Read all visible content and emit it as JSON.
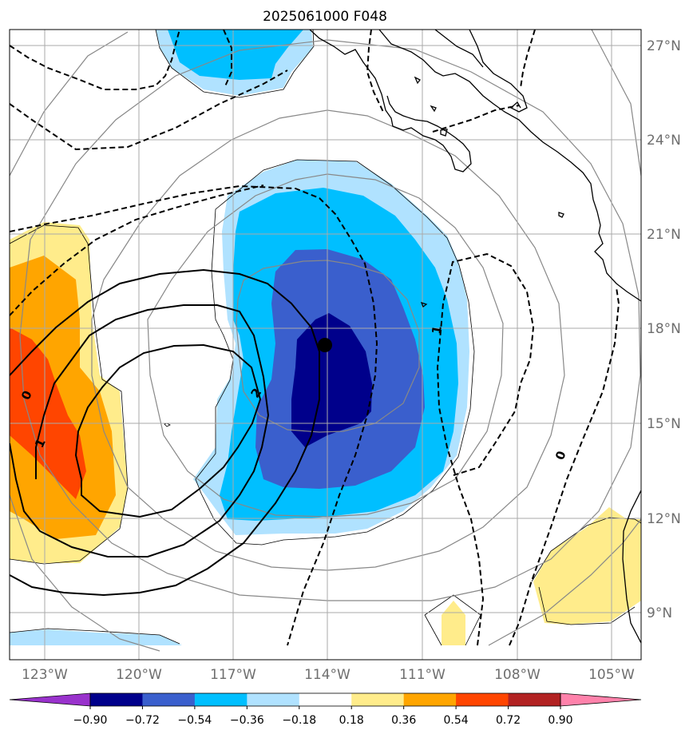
{
  "title": "2025061000 F048",
  "lat_labels": [
    "27°N",
    "24°N",
    "21°N",
    "18°N",
    "15°N",
    "12°N",
    "9°N"
  ],
  "lon_labels": [
    "123°W",
    "120°W",
    "117°W",
    "114°W",
    "111°W",
    "108°W",
    "105°W"
  ],
  "contour_labels": {
    "zero_left": "0",
    "one_left": "1",
    "two_left": "2",
    "one_right": "1",
    "zero_right": "0"
  },
  "colorbar": {
    "tick_labels": [
      "−0.90",
      "−0.72",
      "−0.54",
      "−0.36",
      "−0.18",
      "0.18",
      "0.36",
      "0.54",
      "0.72",
      "0.90"
    ],
    "colors": [
      "#9932cc",
      "#00008b",
      "#3a5fcd",
      "#00bfff",
      "#b0e2ff",
      "#ffffff",
      "#ffec8b",
      "#ffa500",
      "#ff4500",
      "#b22222",
      "#ff82ab"
    ]
  },
  "shading_colors": {
    "neg_090_072": "#00008b",
    "neg_072_054": "#3a5fcd",
    "neg_054_036": "#00bfff",
    "neg_036_018": "#b0e2ff",
    "pos_018_036": "#ffec8b",
    "pos_036_054": "#ffa500",
    "pos_054_072": "#ff4500"
  }
}
